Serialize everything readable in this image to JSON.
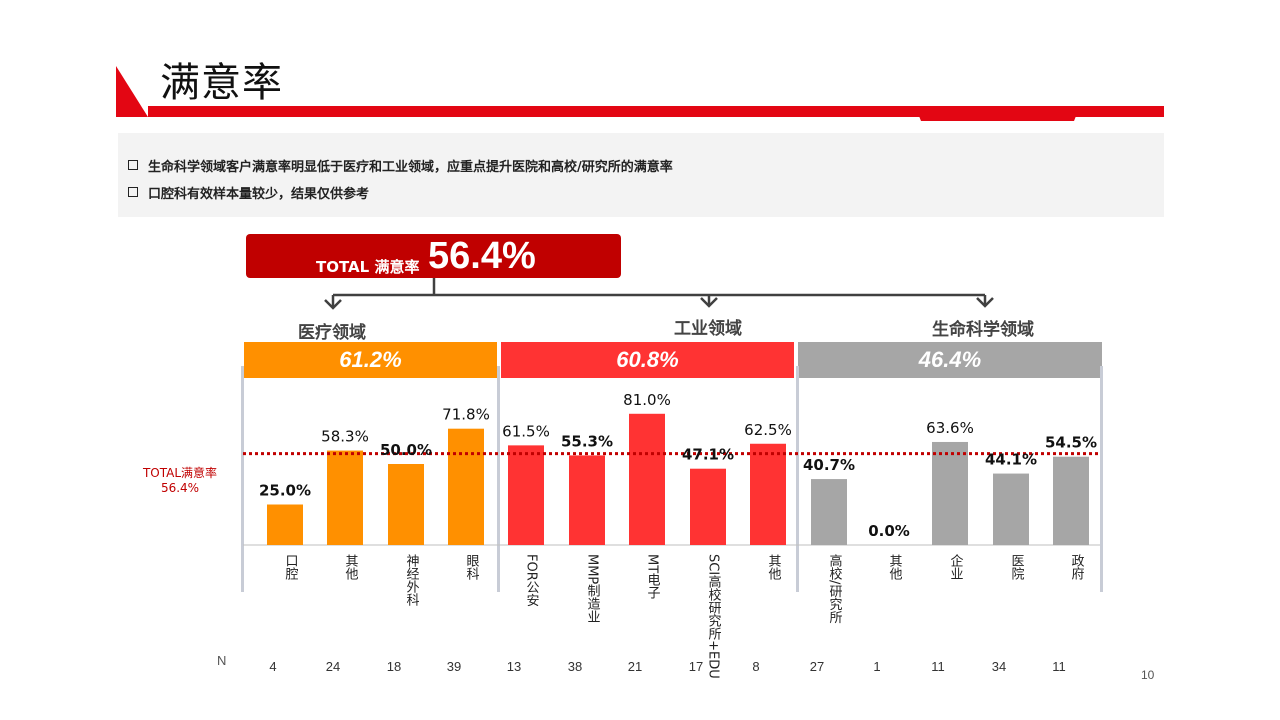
{
  "slide": {
    "title": "满意率",
    "notes": [
      "生命科学领域客户满意率明显低于医疗和工业领域，应重点提升医院和高校/研究所的满意率",
      "口腔科有效样本量较少，结果仅供参考"
    ],
    "total_label": "TOTAL 满意率",
    "total_value": "56.4%",
    "ref_label_line1": "TOTAL满意率",
    "ref_label_line2": "56.4%",
    "n_label": "N",
    "page_number": "10",
    "colors": {
      "accent": "#e30613",
      "dark_red": "#c00000",
      "orange": "#ff9000",
      "red": "#ff3333",
      "gray": "#a6a6a6"
    }
  },
  "chart_data": {
    "type": "bar",
    "ylim": [
      0,
      100
    ],
    "reference_line": 56.4,
    "groups": [
      {
        "name": "医疗领域",
        "banner": "61.2%",
        "color": "#ff9000",
        "categories": [
          "口腔",
          "其他",
          "神经外科",
          "眼科"
        ],
        "values": [
          25.0,
          58.3,
          50.0,
          71.8
        ],
        "labels": [
          "25.0%",
          "58.3%",
          "50.0%",
          "71.8%"
        ],
        "n": [
          "4",
          "24",
          "18",
          "39"
        ]
      },
      {
        "name": "工业领域",
        "banner": "60.8%",
        "color": "#ff3333",
        "categories": [
          "FOR公安",
          "MMP制造业",
          "MT电子",
          "SCI高校研究所+EDU",
          "其他"
        ],
        "values": [
          61.5,
          55.3,
          81.0,
          47.1,
          62.5
        ],
        "labels": [
          "61.5%",
          "55.3%",
          "81.0%",
          "47.1%",
          "62.5%"
        ],
        "n": [
          "13",
          "38",
          "21",
          "17",
          "8"
        ]
      },
      {
        "name": "生命科学领域",
        "banner": "46.4%",
        "color": "#a6a6a6",
        "categories": [
          "高校/研究所",
          "其他",
          "企业",
          "医院",
          "政府"
        ],
        "values": [
          40.7,
          0.0,
          63.6,
          44.1,
          54.5
        ],
        "labels": [
          "40.7%",
          "0.0%",
          "63.6%",
          "44.1%",
          "54.5%"
        ],
        "n": [
          "27",
          "1",
          "11",
          "34",
          "11"
        ]
      }
    ]
  }
}
